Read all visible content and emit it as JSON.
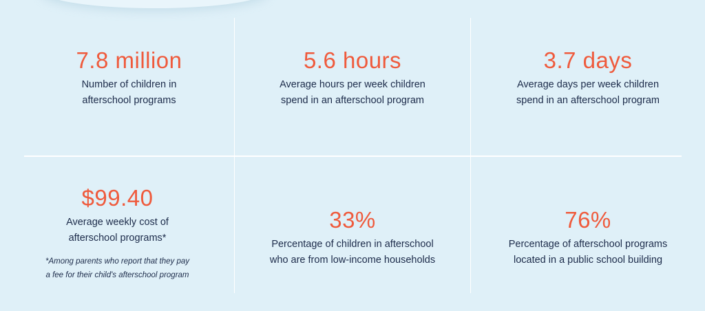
{
  "stats": [
    {
      "value": "7.8 million",
      "desc": [
        "Number of children in",
        "afterschool programs"
      ]
    },
    {
      "value": "5.6 hours",
      "desc": [
        "Average hours per week children",
        "spend in an afterschool program"
      ]
    },
    {
      "value": "3.7 days",
      "desc": [
        "Average days per week children",
        "spend in an afterschool program"
      ]
    },
    {
      "value": "$99.40",
      "desc": [
        "Average weekly cost of",
        "afterschool programs*"
      ],
      "note": [
        "*Among parents who report that they pay",
        "a fee for their child's afterschool program"
      ]
    },
    {
      "value": "33%",
      "desc": [
        "Percentage of children in afterschool",
        "who are from low-income households"
      ]
    },
    {
      "value": "76%",
      "desc": [
        "Percentage of afterschool programs",
        "located in a public school building"
      ]
    }
  ],
  "colors": {
    "background": "#dff0f8",
    "accent": "#ef5a3c",
    "text": "#1c2b4a",
    "divider": "#ffffff"
  }
}
